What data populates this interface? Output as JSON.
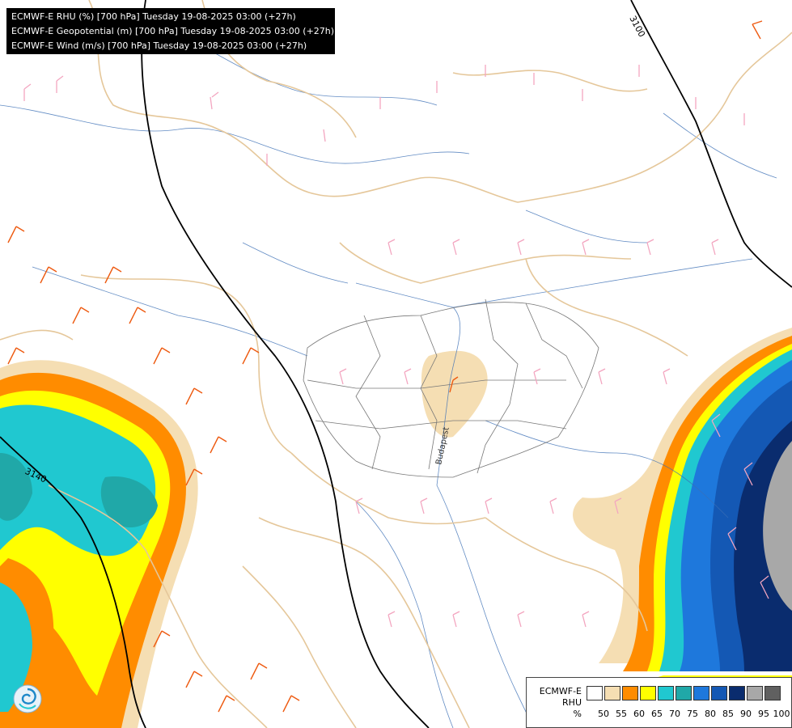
{
  "header": {
    "lines": [
      "ECMWF-E RHU (%) [700 hPa] Tuesday 19-08-2025 03:00 (+27h)",
      "ECMWF-E Geopotential (m) [700 hPa] Tuesday 19-08-2025 03:00 (+27h)",
      "ECMWF-E Wind (m/s) [700 hPa] Tuesday 19-08-2025 03:00 (+27h)"
    ]
  },
  "contours": {
    "labels": [
      "3100",
      "3140"
    ]
  },
  "city_label": "Budapest",
  "legend": {
    "title_lines": [
      "ECMWF-E",
      "RHU",
      "%"
    ],
    "colors": [
      "#ffffff",
      "#f5deb3",
      "#ff8c00",
      "#ffff00",
      "#20c8d0",
      "#20a8a8",
      "#1e78dc",
      "#1458b4",
      "#0a2c6e",
      "#a8a8a8",
      "#606060"
    ],
    "ticks": [
      "50",
      "55",
      "60",
      "65",
      "70",
      "75",
      "80",
      "85",
      "90",
      "95",
      "100"
    ]
  },
  "logo": {
    "icon": "swirl-logo-icon"
  }
}
